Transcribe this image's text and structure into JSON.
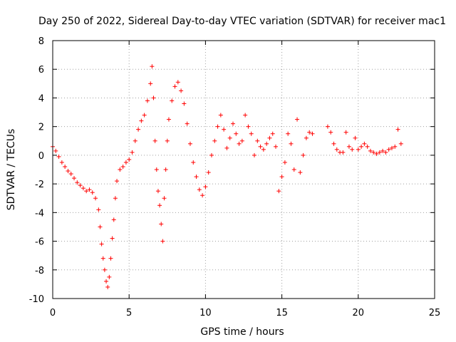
{
  "chart_data": {
    "type": "scatter",
    "title": "Day 250 of 2022, Sidereal Day-to-day VTEC variation (SDTVAR) for receiver mac1",
    "xlabel": "GPS time / hours",
    "ylabel": "SDTVAR / TECUs",
    "xlim": [
      0,
      25
    ],
    "ylim": [
      -10,
      8
    ],
    "xticks": [
      "0",
      "5",
      "10",
      "15",
      "20",
      "25"
    ],
    "yticks": [
      "8",
      "6",
      "4",
      "2",
      "0",
      "-2",
      "-4",
      "-6",
      "-8",
      "-10"
    ],
    "grid": true,
    "marker": "+",
    "series": [
      {
        "name": "SDTVAR",
        "color": "#ff0000",
        "points": [
          [
            0.0,
            0.6
          ],
          [
            0.2,
            0.3
          ],
          [
            0.4,
            -0.1
          ],
          [
            0.6,
            -0.5
          ],
          [
            0.8,
            -0.8
          ],
          [
            1.0,
            -1.1
          ],
          [
            1.2,
            -1.3
          ],
          [
            1.4,
            -1.6
          ],
          [
            1.6,
            -1.9
          ],
          [
            1.8,
            -2.1
          ],
          [
            2.0,
            -2.3
          ],
          [
            2.2,
            -2.5
          ],
          [
            2.4,
            -2.4
          ],
          [
            2.6,
            -2.6
          ],
          [
            2.8,
            -3.0
          ],
          [
            3.0,
            -3.8
          ],
          [
            3.1,
            -5.0
          ],
          [
            3.2,
            -6.2
          ],
          [
            3.3,
            -7.2
          ],
          [
            3.4,
            -8.0
          ],
          [
            3.5,
            -8.8
          ],
          [
            3.6,
            -9.2
          ],
          [
            3.7,
            -8.5
          ],
          [
            3.8,
            -7.2
          ],
          [
            3.9,
            -5.8
          ],
          [
            4.0,
            -4.5
          ],
          [
            4.1,
            -3.0
          ],
          [
            4.2,
            -1.8
          ],
          [
            4.4,
            -1.0
          ],
          [
            4.6,
            -0.8
          ],
          [
            4.8,
            -0.5
          ],
          [
            5.0,
            -0.3
          ],
          [
            5.2,
            0.2
          ],
          [
            5.4,
            1.0
          ],
          [
            5.6,
            1.8
          ],
          [
            5.8,
            2.4
          ],
          [
            6.0,
            2.8
          ],
          [
            6.2,
            3.8
          ],
          [
            6.4,
            5.0
          ],
          [
            6.5,
            6.2
          ],
          [
            6.6,
            4.0
          ],
          [
            6.7,
            1.0
          ],
          [
            6.8,
            -1.0
          ],
          [
            6.9,
            -2.5
          ],
          [
            7.0,
            -3.5
          ],
          [
            7.1,
            -4.8
          ],
          [
            7.2,
            -6.0
          ],
          [
            7.3,
            -3.0
          ],
          [
            7.4,
            -1.0
          ],
          [
            7.5,
            1.0
          ],
          [
            7.6,
            2.5
          ],
          [
            7.8,
            3.8
          ],
          [
            8.0,
            4.8
          ],
          [
            8.2,
            5.1
          ],
          [
            8.4,
            4.5
          ],
          [
            8.6,
            3.6
          ],
          [
            8.8,
            2.2
          ],
          [
            9.0,
            0.8
          ],
          [
            9.2,
            -0.5
          ],
          [
            9.4,
            -1.5
          ],
          [
            9.6,
            -2.4
          ],
          [
            9.8,
            -2.8
          ],
          [
            10.0,
            -2.2
          ],
          [
            10.2,
            -1.2
          ],
          [
            10.4,
            0.0
          ],
          [
            10.6,
            1.0
          ],
          [
            10.8,
            2.0
          ],
          [
            11.0,
            2.8
          ],
          [
            11.2,
            1.8
          ],
          [
            11.4,
            0.5
          ],
          [
            11.6,
            1.2
          ],
          [
            11.8,
            2.2
          ],
          [
            12.0,
            1.5
          ],
          [
            12.2,
            0.8
          ],
          [
            12.4,
            1.0
          ],
          [
            12.6,
            2.8
          ],
          [
            12.8,
            2.0
          ],
          [
            13.0,
            1.5
          ],
          [
            13.2,
            0.0
          ],
          [
            13.4,
            1.0
          ],
          [
            13.6,
            0.6
          ],
          [
            13.8,
            0.4
          ],
          [
            14.0,
            0.8
          ],
          [
            14.2,
            1.2
          ],
          [
            14.4,
            1.5
          ],
          [
            14.6,
            0.6
          ],
          [
            14.8,
            -2.5
          ],
          [
            15.0,
            -1.5
          ],
          [
            15.2,
            -0.5
          ],
          [
            15.4,
            1.5
          ],
          [
            15.6,
            0.8
          ],
          [
            15.8,
            -1.0
          ],
          [
            16.0,
            2.5
          ],
          [
            16.2,
            -1.2
          ],
          [
            16.4,
            0.0
          ],
          [
            16.6,
            1.2
          ],
          [
            16.8,
            1.6
          ],
          [
            17.0,
            1.5
          ],
          [
            18.0,
            2.0
          ],
          [
            18.2,
            1.6
          ],
          [
            18.4,
            0.8
          ],
          [
            18.6,
            0.4
          ],
          [
            18.8,
            0.2
          ],
          [
            19.0,
            0.2
          ],
          [
            19.2,
            1.6
          ],
          [
            19.4,
            0.6
          ],
          [
            19.6,
            0.4
          ],
          [
            19.8,
            1.2
          ],
          [
            20.0,
            0.4
          ],
          [
            20.2,
            0.6
          ],
          [
            20.4,
            0.8
          ],
          [
            20.6,
            0.6
          ],
          [
            20.8,
            0.3
          ],
          [
            21.0,
            0.2
          ],
          [
            21.2,
            0.1
          ],
          [
            21.4,
            0.2
          ],
          [
            21.6,
            0.3
          ],
          [
            21.8,
            0.2
          ],
          [
            22.0,
            0.4
          ],
          [
            22.2,
            0.5
          ],
          [
            22.4,
            0.6
          ],
          [
            22.6,
            1.8
          ],
          [
            22.8,
            0.8
          ]
        ]
      }
    ]
  }
}
